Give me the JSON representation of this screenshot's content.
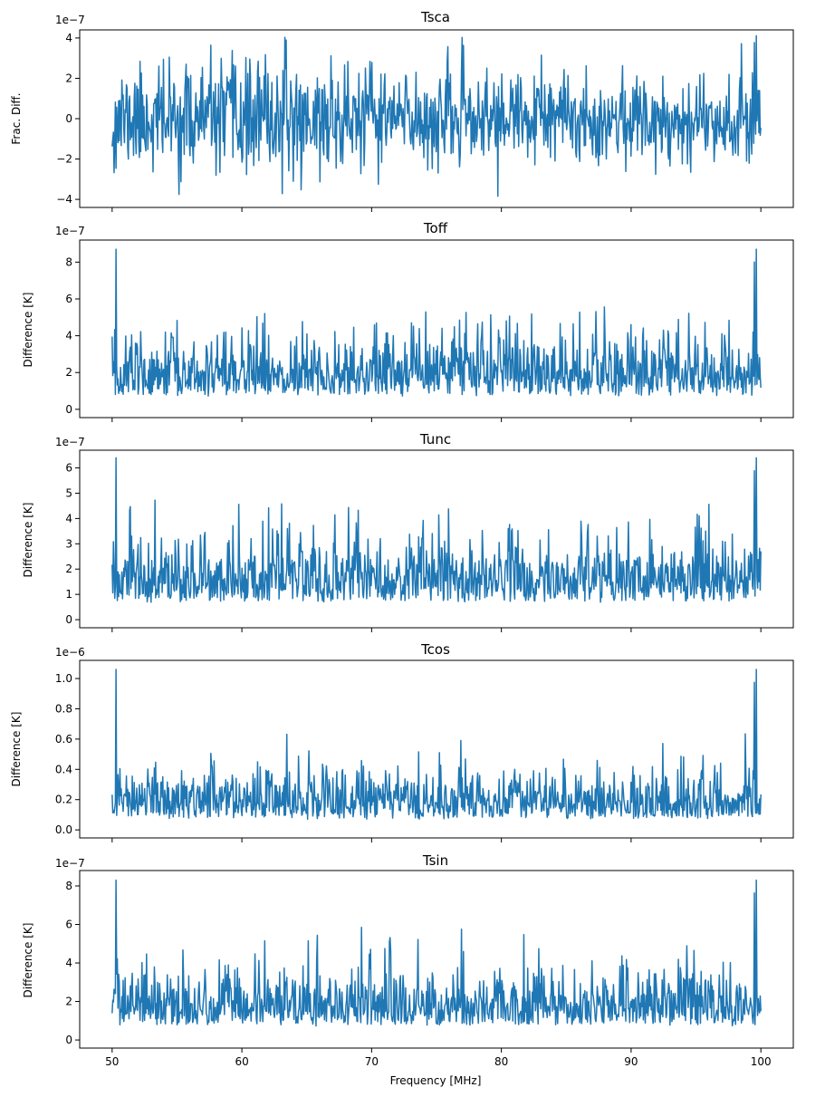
{
  "chart_data": [
    {
      "type": "line",
      "title": "Tsca",
      "ylabel": "Frac. Diff.",
      "xlabel": "",
      "exponent_label": "1e−7",
      "xlim": [
        47.5,
        102.5
      ],
      "ylim": [
        -4.4,
        4.4
      ],
      "yticks": [
        -4,
        -2,
        0,
        2,
        4
      ],
      "ytick_labels": [
        "−4",
        "−2",
        "0",
        "2",
        "4"
      ],
      "xticks": [
        50,
        60,
        70,
        80,
        90,
        100
      ],
      "xtick_labels": [],
      "line_color": "#1f77b4",
      "grid": false,
      "noise": {
        "x_start": 50,
        "x_end": 100,
        "points": 1000,
        "center": 0.0,
        "spread": 2.2,
        "amplitude": 3.5,
        "edge_peak": 4.1,
        "min": -4.0,
        "max": 4.1,
        "seed": 11,
        "signed": true
      }
    },
    {
      "type": "line",
      "title": "Toff",
      "ylabel": "Difference [K]",
      "xlabel": "",
      "exponent_label": "1e−7",
      "xlim": [
        47.5,
        102.5
      ],
      "ylim": [
        -0.45,
        9.2
      ],
      "yticks": [
        0,
        2,
        4,
        6,
        8
      ],
      "ytick_labels": [
        "0",
        "2",
        "4",
        "6",
        "8"
      ],
      "xticks": [
        50,
        60,
        70,
        80,
        90,
        100
      ],
      "xtick_labels": [],
      "line_color": "#1f77b4",
      "grid": false,
      "noise": {
        "x_start": 50,
        "x_end": 100,
        "points": 1000,
        "center": 2.8,
        "spread": 1.6,
        "amplitude": 6.6,
        "edge_peak": 8.7,
        "min": 0.0,
        "max": 8.7,
        "seed": 23,
        "signed": false
      }
    },
    {
      "type": "line",
      "title": "Tunc",
      "ylabel": "Difference [K]",
      "xlabel": "",
      "exponent_label": "1e−7",
      "xlim": [
        47.5,
        102.5
      ],
      "ylim": [
        -0.32,
        6.7
      ],
      "yticks": [
        0,
        1,
        2,
        3,
        4,
        5,
        6
      ],
      "ytick_labels": [
        "0",
        "1",
        "2",
        "3",
        "4",
        "5",
        "6"
      ],
      "xticks": [
        50,
        60,
        70,
        80,
        90,
        100
      ],
      "xtick_labels": [],
      "line_color": "#1f77b4",
      "grid": false,
      "noise": {
        "x_start": 50,
        "x_end": 100,
        "points": 1000,
        "center": 2.7,
        "spread": 1.3,
        "amplitude": 5.8,
        "edge_peak": 6.4,
        "min": 0.0,
        "max": 6.4,
        "seed": 37,
        "signed": false
      }
    },
    {
      "type": "line",
      "title": "Tcos",
      "ylabel": "Difference [K]",
      "xlabel": "",
      "exponent_label": "1e−6",
      "xlim": [
        47.5,
        102.5
      ],
      "ylim": [
        -0.053,
        1.12
      ],
      "yticks": [
        0.0,
        0.2,
        0.4,
        0.6,
        0.8,
        1.0
      ],
      "ytick_labels": [
        "0.0",
        "0.2",
        "0.4",
        "0.6",
        "0.8",
        "1.0"
      ],
      "xticks": [
        50,
        60,
        70,
        80,
        90,
        100
      ],
      "xtick_labels": [],
      "line_color": "#1f77b4",
      "grid": false,
      "noise": {
        "x_start": 50,
        "x_end": 100,
        "points": 1000,
        "center": 0.28,
        "spread": 0.16,
        "amplitude": 0.74,
        "edge_peak": 1.06,
        "min": 0.0,
        "max": 1.06,
        "seed": 53,
        "signed": false
      }
    },
    {
      "type": "line",
      "title": "Tsin",
      "ylabel": "Difference [K]",
      "xlabel": "Frequency [MHz]",
      "exponent_label": "1e−7",
      "xlim": [
        47.5,
        102.5
      ],
      "ylim": [
        -0.42,
        8.8
      ],
      "yticks": [
        0,
        2,
        4,
        6,
        8
      ],
      "ytick_labels": [
        "0",
        "2",
        "4",
        "6",
        "8"
      ],
      "xticks": [
        50,
        60,
        70,
        80,
        90,
        100
      ],
      "xtick_labels": [
        "50",
        "60",
        "70",
        "80",
        "90",
        "100"
      ],
      "line_color": "#1f77b4",
      "grid": false,
      "noise": {
        "x_start": 50,
        "x_end": 100,
        "points": 1000,
        "center": 2.9,
        "spread": 1.5,
        "amplitude": 7.6,
        "edge_peak": 8.3,
        "min": 0.0,
        "max": 8.3,
        "seed": 71,
        "signed": false
      }
    }
  ]
}
